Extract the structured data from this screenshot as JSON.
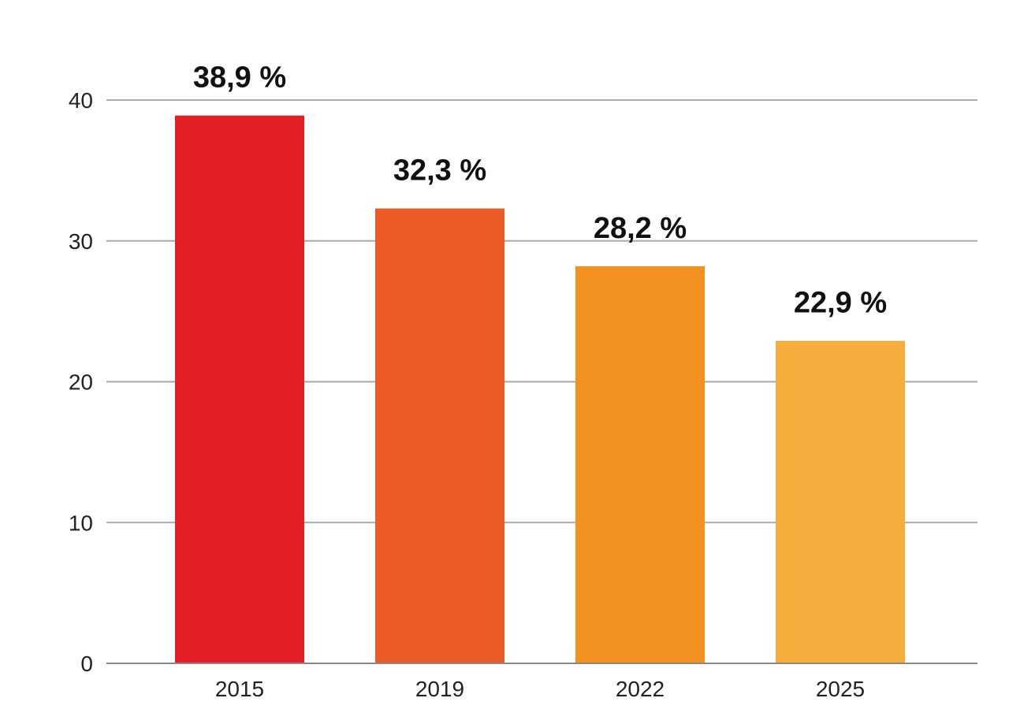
{
  "chart_data": {
    "type": "bar",
    "title": "",
    "xlabel": "",
    "ylabel": "",
    "categories": [
      "2015",
      "2019",
      "2022",
      "2025"
    ],
    "values": [
      38.9,
      32.3,
      28.2,
      22.9
    ],
    "data_labels": [
      "38,9 %",
      "32,3 %",
      "28,2 %",
      "22,9 %"
    ],
    "colors": [
      "#E31E26",
      "#EA5B27",
      "#F39221",
      "#F5AE3C"
    ],
    "ylim": [
      0,
      40
    ],
    "yticks": [
      0,
      10,
      20,
      30,
      40
    ],
    "grid": true,
    "gridline_color": "#AAAAAA",
    "legend": "none"
  }
}
